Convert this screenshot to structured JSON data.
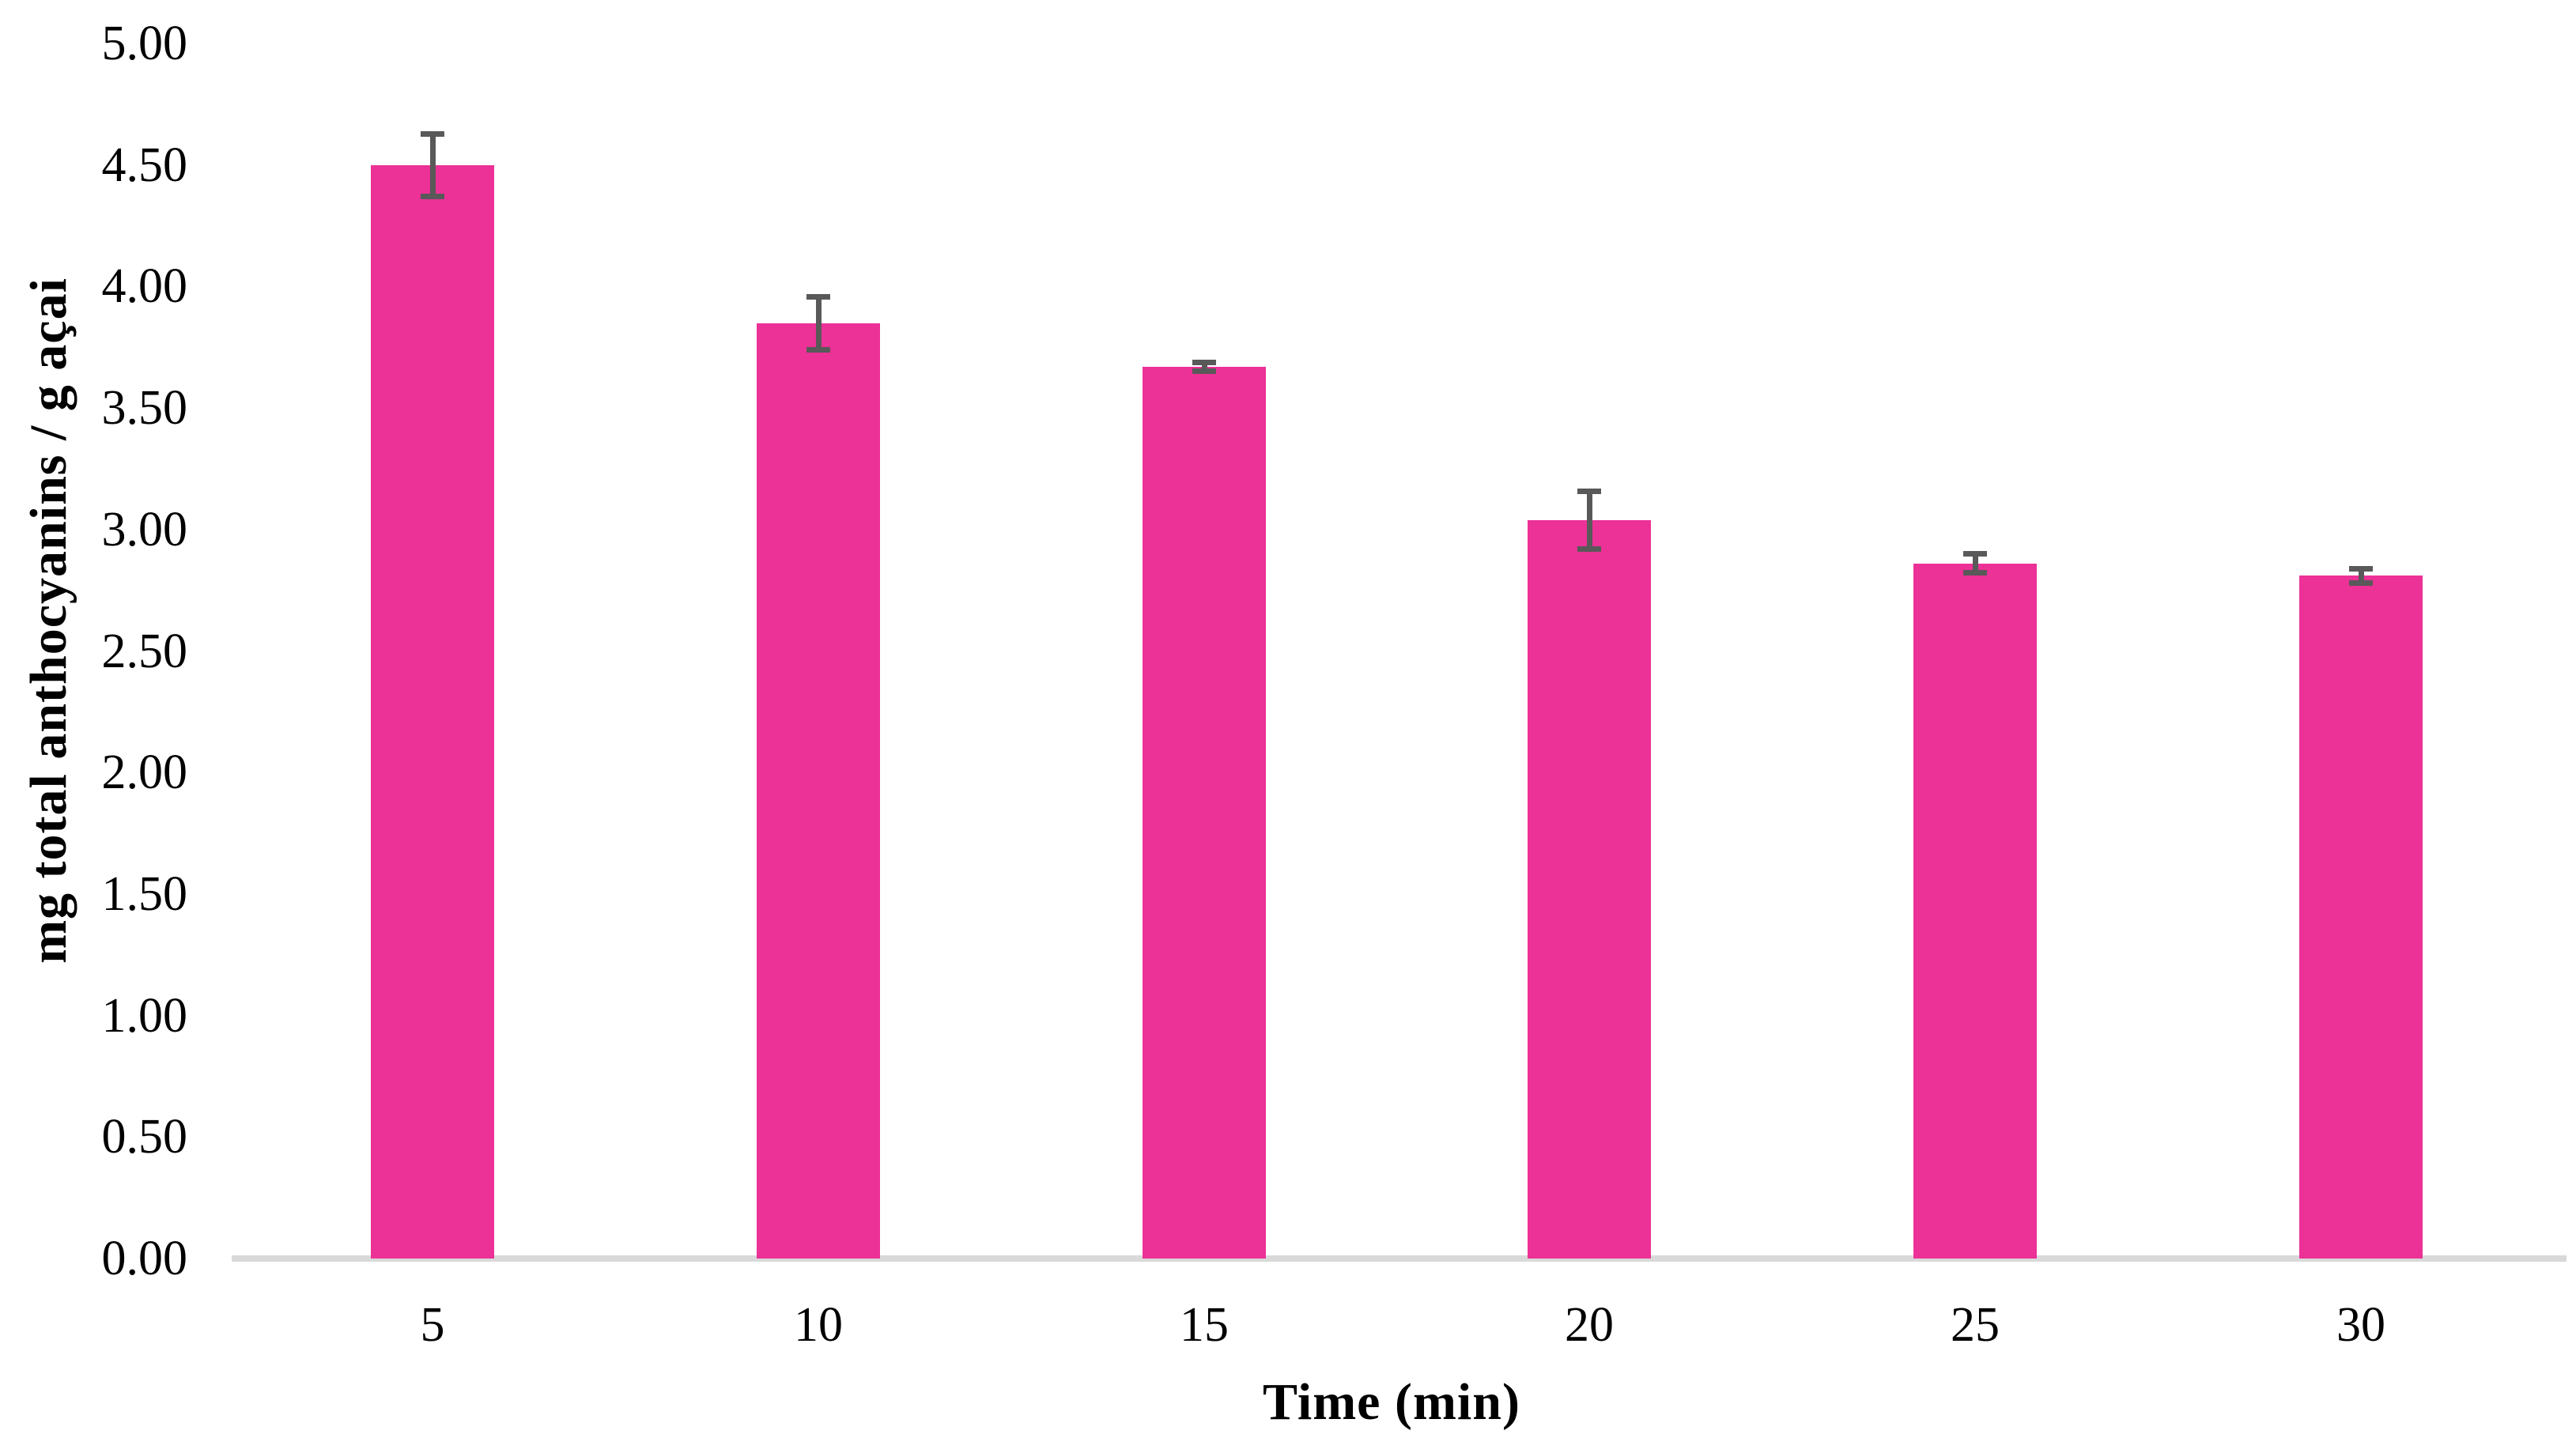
{
  "chart_data": {
    "type": "bar",
    "title": "",
    "xlabel": "Time (min)",
    "ylabel": "mg total anthocyanins / g açai",
    "categories": [
      "5",
      "10",
      "15",
      "20",
      "25",
      "30"
    ],
    "series": [
      {
        "name": "total anthocyanins",
        "values": [
          4.5,
          3.85,
          3.67,
          3.04,
          2.86,
          2.81
        ],
        "error_bars": [
          0.14,
          0.12,
          0.03,
          0.13,
          0.05,
          0.04
        ]
      }
    ],
    "ylim": [
      0,
      5
    ],
    "ytick_step": 0.5,
    "ytick_labels": [
      "0.00",
      "0.50",
      "1.00",
      "1.50",
      "2.00",
      "2.50",
      "3.00",
      "3.50",
      "4.00",
      "4.50",
      "5.00"
    ],
    "grid": false,
    "legend": "none",
    "colors": {
      "bar": "#EC3197",
      "error_bar": "#595959",
      "axis_line": "#D9D9D9",
      "text": "#000000"
    }
  }
}
